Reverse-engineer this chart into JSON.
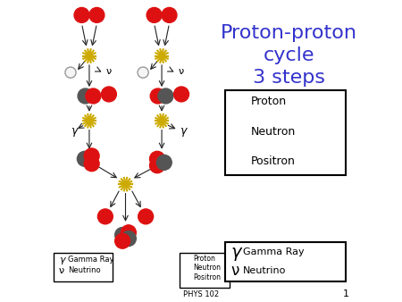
{
  "title": "Proton-proton\ncycle\n3 steps",
  "title_color": "#3333cc",
  "title_fontsize": 16,
  "bg_color": "#ffffff",
  "proton_color": "#dd1111",
  "neutron_color": "#555555",
  "positron_color": "#f5f5f5",
  "positron_edge": "#999999",
  "star_color": "#ccaa00",
  "arrow_color": "#222222",
  "footer_text": "PHYS 102",
  "page_num": "1"
}
